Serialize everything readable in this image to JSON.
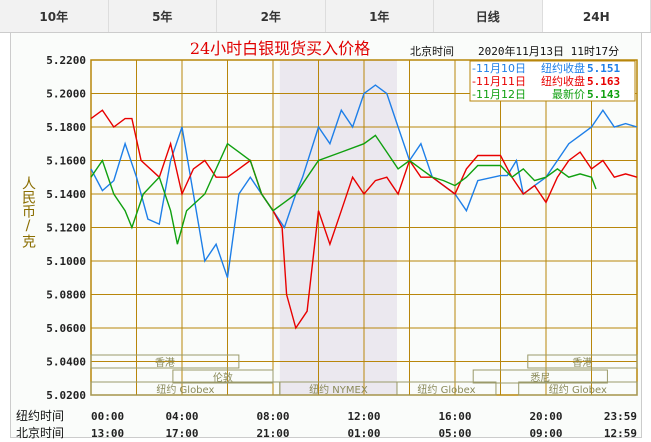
{
  "tabs": [
    "10年",
    "5年",
    "2年",
    "1年",
    "日线",
    "24H"
  ],
  "active_tab": "24H",
  "header": {
    "label": "北京时间",
    "datetime": "2020年11月13日 11时17分"
  },
  "chart_data": {
    "type": "line",
    "title": "24小时白银现货买入价格",
    "ylabel": "人民币/克",
    "ylim": [
      5.02,
      5.22
    ],
    "yticks": [
      "5.2200",
      "5.2000",
      "5.1800",
      "5.1600",
      "5.1400",
      "5.1200",
      "5.1000",
      "5.0800",
      "5.0600",
      "5.0400",
      "5.0200"
    ],
    "xlim": [
      0,
      24
    ],
    "xaxis_rows": [
      {
        "label": "纽约时间",
        "ticks": [
          "00:00",
          "04:00",
          "08:00",
          "12:00",
          "16:00",
          "20:00",
          "23:59"
        ]
      },
      {
        "label": "北京时间",
        "ticks": [
          "13:00",
          "17:00",
          "21:00",
          "01:00",
          "05:00",
          "09:00",
          "12:59"
        ]
      }
    ],
    "legend": [
      {
        "name": "-11月10日",
        "desc": "纽约收盘",
        "value": "5.151",
        "color": "#1e7fe8"
      },
      {
        "name": "-11月11日",
        "desc": "纽约收盘",
        "value": "5.163",
        "color": "#e80000"
      },
      {
        "name": "-11月12日",
        "desc": "最新价",
        "value": "5.143",
        "color": "#10a010"
      }
    ],
    "shaded_range": [
      8.3,
      13.45
    ],
    "sessions": [
      {
        "name": "香港",
        "start": 0,
        "end": 6.5,
        "row": 0
      },
      {
        "name": "香港",
        "start": 19.2,
        "end": 24,
        "row": 0
      },
      {
        "name": "伦敦",
        "start": 3.6,
        "end": 8.0,
        "row": 1
      },
      {
        "name": "悉尼",
        "start": 16.8,
        "end": 22.7,
        "row": 1
      },
      {
        "name": "纽约 Globex",
        "start": 0,
        "end": 8.3,
        "row": 2
      },
      {
        "name": "纽约 NYMEX",
        "start": 8.3,
        "end": 13.45,
        "row": 2
      },
      {
        "name": "纽约 Globex",
        "start": 13.45,
        "end": 17.8,
        "row": 2
      },
      {
        "name": "纽约 Globex",
        "start": 18.8,
        "end": 24,
        "row": 2
      }
    ],
    "series": [
      {
        "name": "11月10日",
        "x": [
          0,
          0.5,
          1,
          1.5,
          2,
          2.5,
          3,
          3.5,
          4,
          4.5,
          5,
          5.5,
          6,
          6.5,
          7,
          7.5,
          8,
          8.5,
          9,
          9.3,
          10,
          10.5,
          11,
          11.5,
          12,
          12.5,
          13,
          13.5,
          14,
          14.5,
          15,
          15.5,
          16,
          16.5,
          17,
          18,
          18.3,
          18.7,
          19,
          19.5,
          20,
          20.5,
          21,
          21.5,
          22,
          22.5,
          23,
          23.5,
          24
        ],
        "values": [
          5.155,
          5.142,
          5.148,
          5.17,
          5.15,
          5.125,
          5.122,
          5.16,
          5.18,
          5.14,
          5.1,
          5.11,
          5.09,
          5.14,
          5.15,
          5.14,
          5.13,
          5.12,
          5.14,
          5.15,
          5.18,
          5.17,
          5.19,
          5.18,
          5.2,
          5.205,
          5.2,
          5.18,
          5.16,
          5.17,
          5.15,
          5.145,
          5.14,
          5.13,
          5.148,
          5.151,
          5.151,
          5.16,
          5.14,
          5.145,
          5.15,
          5.16,
          5.17,
          5.175,
          5.18,
          5.19,
          5.18,
          5.182,
          5.18
        ]
      },
      {
        "name": "11月11日",
        "x": [
          0,
          0.5,
          1,
          1.5,
          1.8,
          2.2,
          3,
          3.5,
          4,
          4.5,
          5,
          5.5,
          6,
          6.5,
          7,
          7.5,
          8,
          8.4,
          8.6,
          9,
          9.5,
          10,
          10.5,
          11,
          11.5,
          12,
          12.5,
          13,
          13.5,
          14,
          14.5,
          15,
          15.5,
          16,
          16.5,
          17,
          18,
          18.5,
          19,
          19.5,
          20,
          20.5,
          21,
          21.5,
          22,
          22.5,
          23,
          23.5,
          24
        ],
        "values": [
          5.185,
          5.19,
          5.18,
          5.185,
          5.185,
          5.16,
          5.15,
          5.17,
          5.14,
          5.155,
          5.16,
          5.15,
          5.15,
          5.155,
          5.16,
          5.14,
          5.13,
          5.12,
          5.08,
          5.06,
          5.07,
          5.13,
          5.11,
          5.13,
          5.15,
          5.14,
          5.148,
          5.15,
          5.14,
          5.16,
          5.15,
          5.15,
          5.145,
          5.14,
          5.155,
          5.163,
          5.163,
          5.15,
          5.14,
          5.145,
          5.135,
          5.15,
          5.16,
          5.165,
          5.155,
          5.16,
          5.15,
          5.152,
          5.15
        ]
      },
      {
        "name": "11月12日",
        "x": [
          0,
          0.5,
          1,
          1.5,
          1.8,
          2.3,
          3,
          3.5,
          3.8,
          4.2,
          5,
          5.5,
          6,
          6.5,
          7,
          7.5,
          8,
          8.5,
          9,
          9.5,
          10,
          11,
          12,
          12.5,
          13,
          13.5,
          14,
          14.5,
          15,
          15.5,
          16,
          16.5,
          17,
          18,
          18.5,
          19,
          19.5,
          20,
          20.5,
          21,
          21.5,
          22,
          22.2
        ],
        "values": [
          5.15,
          5.16,
          5.14,
          5.13,
          5.12,
          5.14,
          5.15,
          5.13,
          5.11,
          5.13,
          5.14,
          5.155,
          5.17,
          5.165,
          5.16,
          5.14,
          5.13,
          5.135,
          5.14,
          5.15,
          5.16,
          5.165,
          5.17,
          5.175,
          5.165,
          5.155,
          5.16,
          5.155,
          5.15,
          5.148,
          5.145,
          5.15,
          5.157,
          5.157,
          5.15,
          5.155,
          5.148,
          5.15,
          5.155,
          5.15,
          5.152,
          5.15,
          5.143
        ]
      }
    ]
  }
}
